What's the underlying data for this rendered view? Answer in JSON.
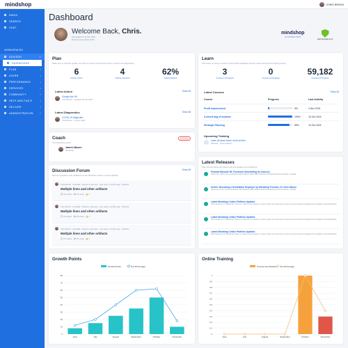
{
  "brand": "mindshop",
  "user": {
    "name": "CHRIS BREWS"
  },
  "sidebar": {
    "items_top": [
      {
        "label": "INBOX"
      },
      {
        "label": "SEARCH"
      },
      {
        "label": "CHAT"
      }
    ],
    "section": "WORKSPACES",
    "workspace": "ADVISOR",
    "items": [
      {
        "label": "DASHBOARD"
      },
      {
        "label": "PLAN"
      },
      {
        "label": "LEARN"
      },
      {
        "label": "PERFORMANCE"
      },
      {
        "label": "SERVICES"
      },
      {
        "label": "COMMUNITY"
      },
      {
        "label": "HELP AND FAQ'S"
      },
      {
        "label": "DELIVER"
      },
      {
        "label": "ADMINISTRATION"
      }
    ]
  },
  "page": {
    "title": "Dashboard",
    "welcome_prefix": "Welcome Back,",
    "welcome_name": "Chris.",
    "last_logged": "Last logged in 11 Nov 2024",
    "member_since": "Member since 3 Dec 2023",
    "badge_brand": "mindshop",
    "badge_sub": "ACCREDITED",
    "engagement": "High Engagement"
  },
  "plan": {
    "title": "Plan",
    "subtitle": "Make sure to visit and update your plan to ensure performance drivers, actions and diagnostics.",
    "stats": [
      {
        "value": "6",
        "label": "Actions Active"
      },
      {
        "value": "4",
        "label": "Actions Overdue"
      },
      {
        "value": "62%",
        "label": "Getting Started"
      }
    ],
    "latest_action": "Latest Action",
    "show_all": "Show All",
    "action_title": "Google Ads 1M",
    "action_meta": "Chris Brews · Updated 04 Oct 2024",
    "latest_diag": "Latest Diagnostics",
    "diag_title": "COVID-19 Diagnostic",
    "diag_meta": "Chris Brews · 14 Nov 2024"
  },
  "learn": {
    "title": "Learn",
    "subtitle": "Visit Learn to access courses to help build capabilities through online learning and training events.",
    "stats": [
      {
        "value": "3",
        "label": "Courses in Progress"
      },
      {
        "value": "0",
        "label": "Courses in Progress"
      },
      {
        "value": "59,182",
        "label": "Courses in Progress"
      }
    ],
    "latest": "Latest Courses",
    "show_all": "Show All",
    "headers": {
      "course": "Course",
      "progress": "Progress",
      "last": "Last Activity"
    },
    "courses": [
      {
        "name": "Profit Improvement",
        "pct": "5%",
        "frac": 0.05,
        "date": "4 Nov 2024"
      },
      {
        "name": "A mixed bag of modules",
        "pct": "100%",
        "frac": 1.0,
        "date": "15 Oct 2024"
      },
      {
        "name": "Strategic Planning",
        "pct": "89%",
        "frac": 0.89,
        "date": "15 Oct 2024"
      }
    ],
    "upcoming": "Upcoming Training",
    "training_title": "Learn all about Azure cloud servers",
    "training_meta": "Webinar · James Mason"
  },
  "coach": {
    "title": "Coach",
    "subtitle": "Your Mindshop coach",
    "tag": "Advocates",
    "name": "James Mason",
    "role": "Mindshop"
  },
  "forum": {
    "title": "Discussion Forum",
    "subtitle": "Discover questions and updates from the Mindshop advisor network globally.",
    "show_all": "Show All",
    "posts": [
      {
        "meta": "Chris Brews · Australia · Posted 1 year ago · Last reply 3 months ago · Website",
        "title": "Multiple lines and other artifacts",
        "replies": "24 replies",
        "views": "26 views",
        "likes": "2"
      },
      {
        "meta": "Chris Brews · Australia · Posted 1 year ago · Last reply 3 months ago · Website",
        "title": "Multiple lines and other artifacts",
        "replies": "24 replies",
        "views": "26 views",
        "likes": "2"
      },
      {
        "meta": "Chris Brews · Australia · Posted 1 year ago · Last reply 3 months ago · Website",
        "title": "Multiple lines and other artifacts",
        "replies": "24 replies",
        "views": "26 views",
        "likes": "2"
      }
    ]
  },
  "releases": {
    "title": "Latest Releases",
    "subtitle": "Stay informed about the latest tools and updates from Mindshop.",
    "items": [
      {
        "title": "Podcast Episode 96: Focussed Onboarding for success",
        "body": "Hear how much can be achieved with Ghalini Ladha, BM Chartered Professional Accountants, Canada"
      },
      {
        "title": "Article: Becoming a Destination Employer by Mindshop Founder, Dr Chris Mason",
        "body": "Hear how much can be achieved with Ghalini Ladha, BM Chartered Professional Accountants, Canada"
      },
      {
        "title": "Latest Mindshop Online Platform Updates",
        "body": "New Features on Mindshop Online to make it even easier to coach, take new business courses and new business diagnostic templates and dashboards"
      },
      {
        "title": "Latest Mindshop Online Platform Updates",
        "body": "New Features on Mindshop Online to make it even easier to coach, take new business courses and new business diagnostic templates and dashboards"
      },
      {
        "title": "Latest Mindshop Online Platform Updates",
        "body": "New Features on Mindshop Online to make it even easier to coach, take new business courses and new business diagnostic templates and dashboards"
      }
    ]
  },
  "chart_data": [
    {
      "type": "bar",
      "title": "Growth Points",
      "legend": [
        "Growth Points",
        "Top 30 Average"
      ],
      "categories": [
        "June",
        "July",
        "August",
        "September",
        "October",
        "November"
      ],
      "values": [
        8,
        15,
        25,
        35,
        50,
        10
      ],
      "line": [
        12,
        20,
        40,
        60,
        62,
        18
      ],
      "ylim": [
        0,
        80
      ],
      "yticks": [
        0,
        10,
        20,
        30,
        40,
        50,
        60,
        70,
        80
      ],
      "colors": {
        "bar": "#27c3c9",
        "line": "#4aa8e8"
      }
    },
    {
      "type": "bar",
      "title": "Online Training",
      "legend": [
        "Courses and Modules",
        "Top 30 Average"
      ],
      "categories": [
        "June",
        "July",
        "August",
        "September",
        "October",
        "November"
      ],
      "values": [
        0,
        0,
        0,
        0,
        1,
        0.3
      ],
      "line": [
        0,
        0,
        0,
        0,
        1,
        0.4
      ],
      "ylim": [
        0,
        1
      ],
      "yticks": [
        "0",
        "0.1",
        "0.2",
        "0.3",
        "0.4",
        "0.5",
        "0.6",
        "0.7",
        "0.8",
        "0.9",
        "1"
      ],
      "colors": {
        "bar": "#f6a23c",
        "bar_low": "#e0574a",
        "line": "#f0c07a"
      }
    }
  ]
}
